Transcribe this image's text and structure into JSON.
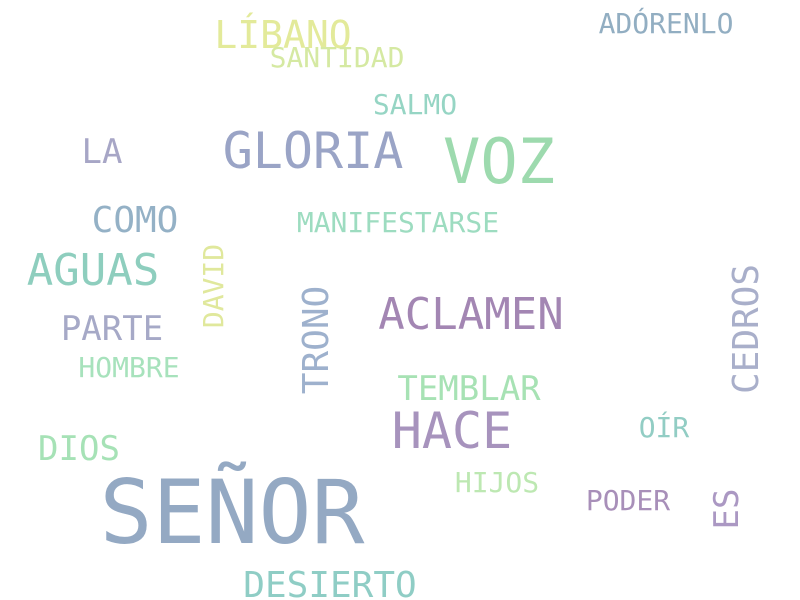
{
  "words": [
    {
      "text": "SEÑOR",
      "color": "#94a9c3"
    },
    {
      "text": "VOZ",
      "color": "#9ddaae"
    },
    {
      "text": "GLORIA",
      "color": "#9aa4c6"
    },
    {
      "text": "HACE",
      "color": "#a793bd"
    },
    {
      "text": "ACLAMEN",
      "color": "#a386b3"
    },
    {
      "text": "AGUAS",
      "color": "#8ecebe"
    },
    {
      "text": "LÍBANO",
      "color": "#e3ea9a"
    },
    {
      "text": "DESIERTO",
      "color": "#8fcdc5"
    },
    {
      "text": "COMO",
      "color": "#94b1c6"
    },
    {
      "text": "TRONO",
      "color": "#9eb1cd"
    },
    {
      "text": "CEDROS",
      "color": "#a9afca"
    },
    {
      "text": "TEMBLAR",
      "color": "#a7e2b4"
    },
    {
      "text": "DIOS",
      "color": "#a6e2b6"
    },
    {
      "text": "PARTE",
      "color": "#a6a9c7"
    },
    {
      "text": "LA",
      "color": "#a7a6c6"
    },
    {
      "text": "ES",
      "color": "#ab98c3"
    },
    {
      "text": "MANIFESTARSE",
      "color": "#9ddcc0"
    },
    {
      "text": "ADÓRENLO",
      "color": "#92aec2"
    },
    {
      "text": "SANTIDAD",
      "color": "#d5e9a2"
    },
    {
      "text": "SALMO",
      "color": "#96d5c4"
    },
    {
      "text": "DAVID",
      "color": "#e0e89c"
    },
    {
      "text": "HOMBRE",
      "color": "#a7e2bc"
    },
    {
      "text": "OÍR",
      "color": "#92cdc4"
    },
    {
      "text": "PODER",
      "color": "#a88fb9"
    },
    {
      "text": "HIJOS",
      "color": "#bde8b2"
    }
  ]
}
